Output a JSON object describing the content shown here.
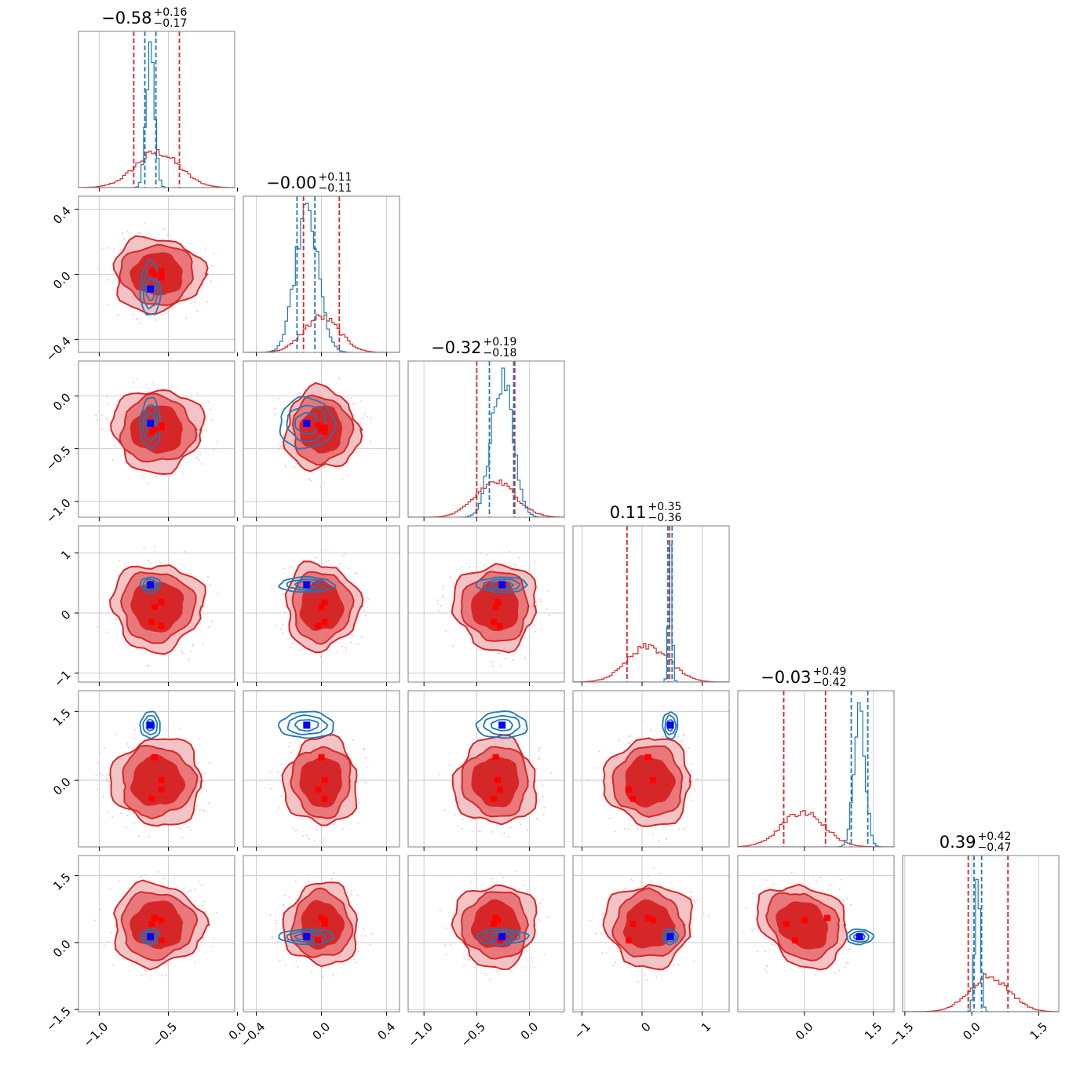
{
  "chart_data": {
    "type": "corner",
    "parameters": [
      {
        "ticks": [
          -1.0,
          -0.5,
          0.0
        ],
        "tick_labels": [
          "−1.0",
          "−0.5",
          "0.0"
        ],
        "range": [
          -1.15,
          -0.02
        ],
        "title": {
          "main": "−0.58",
          "sup": "+0.16",
          "sub": "−0.17"
        },
        "truth": -0.63,
        "quantiles_red": [
          -0.75,
          -0.42
        ],
        "quantiles_blue": [
          -0.67,
          -0.59
        ]
      },
      {
        "ticks": [
          -0.4,
          0.0,
          0.4
        ],
        "tick_labels": [
          "−0.4",
          "0.0",
          "0.4"
        ],
        "range": [
          -0.48,
          0.48
        ],
        "title": {
          "main": "−0.00",
          "sup": "+0.11",
          "sub": "−0.11"
        },
        "truth": -0.09,
        "quantiles_red": [
          -0.11,
          0.11
        ],
        "quantiles_blue": [
          -0.15,
          -0.04
        ]
      },
      {
        "ticks": [
          -1.0,
          -0.5,
          0.0
        ],
        "tick_labels": [
          "−1.0",
          "−0.5",
          "0.0"
        ],
        "range": [
          -1.15,
          0.33
        ],
        "title": {
          "main": "−0.32",
          "sup": "+0.19",
          "sub": "−0.18"
        },
        "truth": -0.26,
        "quantiles_red": [
          -0.5,
          -0.14
        ],
        "quantiles_blue": [
          -0.38,
          -0.15
        ]
      },
      {
        "ticks": [
          -1,
          0,
          1
        ],
        "tick_labels": [
          "−1",
          "0",
          "1"
        ],
        "range": [
          -1.15,
          1.45
        ],
        "title": {
          "main": "0.11",
          "sup": "+0.35",
          "sub": "−0.36"
        },
        "truth": 0.47,
        "quantiles_red": [
          -0.25,
          0.46
        ],
        "quantiles_blue": [
          0.43,
          0.5
        ]
      },
      {
        "ticks": [
          0.0,
          1.5
        ],
        "tick_labels": [
          "0.0",
          "1.5"
        ],
        "range": [
          -1.45,
          1.95
        ],
        "title": {
          "main": "−0.03",
          "sup": "+0.49",
          "sub": "−0.42"
        },
        "truth": 1.2,
        "quantiles_red": [
          -0.45,
          0.46
        ],
        "quantiles_blue": [
          1.02,
          1.38
        ]
      },
      {
        "ticks": [
          -1.5,
          0.0,
          1.5
        ],
        "tick_labels": [
          "−1.5",
          "0.0",
          "1.5"
        ],
        "range": [
          -1.55,
          1.95
        ],
        "title": {
          "main": "0.39",
          "sup": "+0.42",
          "sub": "−0.47"
        },
        "truth": 0.13,
        "quantiles_red": [
          -0.08,
          0.81
        ],
        "quantiles_blue": [
          0.05,
          0.22
        ]
      }
    ],
    "red_markers": [
      [
        -0.6,
        0.0,
        -0.32,
        0.1,
        0.5,
        0.55
      ],
      [
        -0.55,
        0.02,
        -0.3,
        0.18,
        0.0,
        0.5
      ],
      [
        -0.62,
        0.02,
        -0.34,
        -0.15,
        -0.4,
        0.42
      ],
      [
        -0.55,
        -0.02,
        -0.28,
        -0.22,
        -0.2,
        0.05
      ]
    ],
    "posteriors": {
      "red": {
        "mean": [
          -0.58,
          0.0,
          -0.32,
          0.11,
          -0.03,
          0.39
        ],
        "sd": [
          0.16,
          0.11,
          0.19,
          0.35,
          0.46,
          0.45
        ]
      },
      "blue": {
        "mean": [
          -0.63,
          -0.09,
          -0.26,
          0.47,
          1.2,
          0.13
        ],
        "sd": [
          0.03,
          0.07,
          0.1,
          0.03,
          0.12,
          0.06
        ]
      }
    },
    "colors": {
      "red": "#d62728",
      "red_mid": "#e8787a",
      "red_light": "#f3c4c5",
      "blue": "#1f77b4",
      "truth_marker": "#0000ff",
      "grid": "#cccccc",
      "frame": "#808080"
    },
    "grid": true,
    "legend": "none"
  }
}
